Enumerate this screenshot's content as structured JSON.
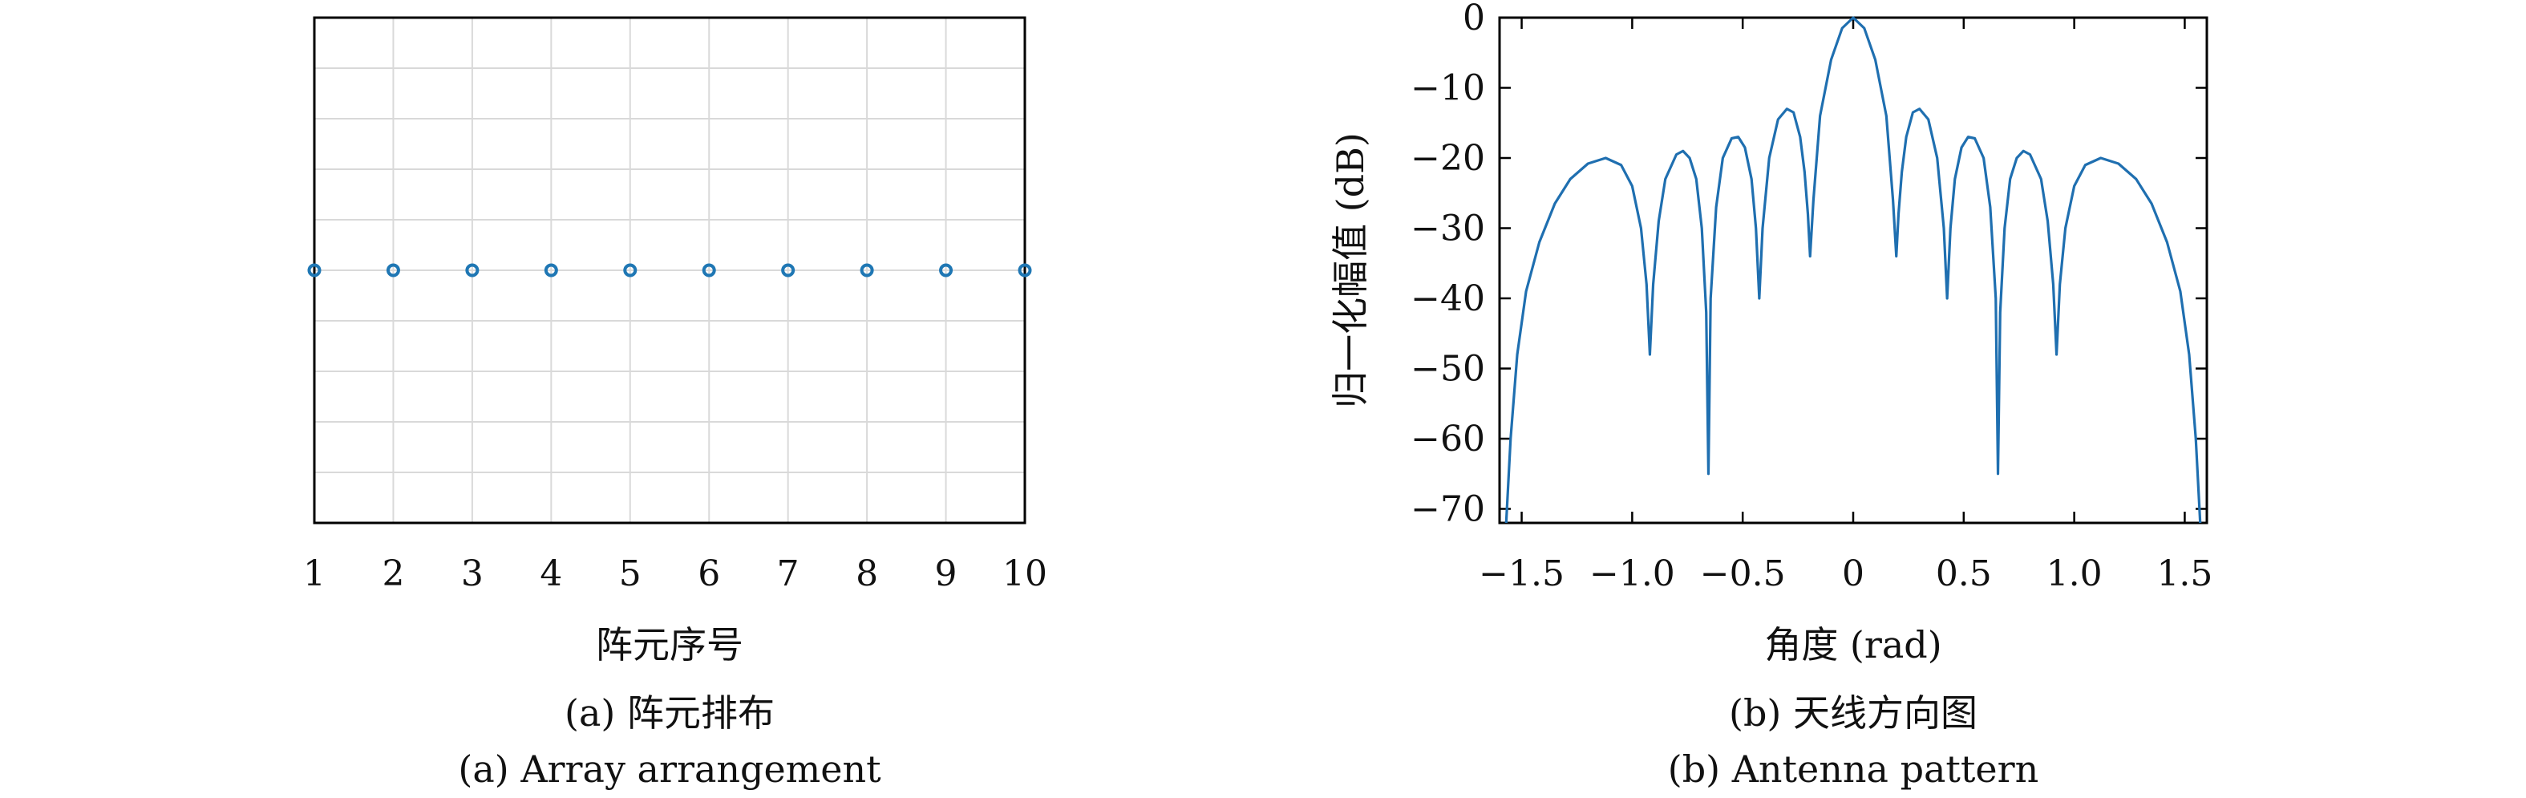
{
  "chart_data": [
    {
      "type": "scatter",
      "xlabel": "阵元序号",
      "ylabel": "",
      "caption_zh": "(a) 阵元排布",
      "caption_en": "(a) Array arrangement",
      "xlim": [
        1,
        10
      ],
      "ylim": [
        -1,
        1
      ],
      "grid": true,
      "x_ticks": [
        1,
        2,
        3,
        4,
        5,
        6,
        7,
        8,
        9,
        10
      ],
      "x_tick_labels": [
        "1",
        "2",
        "3",
        "4",
        "5",
        "6",
        "7",
        "8",
        "9",
        "10"
      ],
      "y_ticks": [
        -1,
        -0.8,
        -0.6,
        -0.4,
        -0.2,
        0,
        0.2,
        0.4,
        0.6,
        0.8,
        1
      ],
      "points": [
        {
          "x": 1,
          "y": 0
        },
        {
          "x": 2,
          "y": 0
        },
        {
          "x": 3,
          "y": 0
        },
        {
          "x": 4,
          "y": 0
        },
        {
          "x": 5,
          "y": 0
        },
        {
          "x": 6,
          "y": 0
        },
        {
          "x": 7,
          "y": 0
        },
        {
          "x": 8,
          "y": 0
        },
        {
          "x": 9,
          "y": 0
        },
        {
          "x": 10,
          "y": 0
        }
      ],
      "marker_color": "#1f77b4"
    },
    {
      "type": "line",
      "xlabel": "角度 (rad)",
      "ylabel": "归一化幅值 (dB)",
      "caption_zh": "(b) 天线方向图",
      "caption_en": "(b) Antenna pattern",
      "xlim": [
        -1.6,
        1.6
      ],
      "ylim": [
        -72,
        0
      ],
      "grid": false,
      "x_ticks": [
        -1.5,
        -1.0,
        -0.5,
        0,
        0.5,
        1.0,
        1.5
      ],
      "x_tick_labels": [
        "−1.5",
        "−1.0",
        "−0.5",
        "0",
        "0.5",
        "1.0",
        "1.5"
      ],
      "y_ticks": [
        0,
        -10,
        -20,
        -30,
        -40,
        -50,
        -60,
        -70
      ],
      "y_tick_labels": [
        "0",
        "−10",
        "−20",
        "−30",
        "−40",
        "−50",
        "−60",
        "−70"
      ],
      "series": [
        {
          "color": "#1f6fb0",
          "points": [
            [
              -1.57,
              -72
            ],
            [
              -1.55,
              -60
            ],
            [
              -1.52,
              -48
            ],
            [
              -1.48,
              -39
            ],
            [
              -1.42,
              -32
            ],
            [
              -1.35,
              -26.5
            ],
            [
              -1.28,
              -23
            ],
            [
              -1.2,
              -20.8
            ],
            [
              -1.12,
              -20
            ],
            [
              -1.05,
              -21
            ],
            [
              -1.0,
              -24
            ],
            [
              -0.96,
              -30
            ],
            [
              -0.935,
              -38
            ],
            [
              -0.92,
              -48
            ],
            [
              -0.905,
              -38
            ],
            [
              -0.88,
              -29
            ],
            [
              -0.85,
              -23
            ],
            [
              -0.8,
              -19.5
            ],
            [
              -0.77,
              -19
            ],
            [
              -0.74,
              -20
            ],
            [
              -0.71,
              -23
            ],
            [
              -0.685,
              -30
            ],
            [
              -0.665,
              -42
            ],
            [
              -0.655,
              -65
            ],
            [
              -0.645,
              -40
            ],
            [
              -0.62,
              -27
            ],
            [
              -0.59,
              -20
            ],
            [
              -0.55,
              -17.2
            ],
            [
              -0.52,
              -17
            ],
            [
              -0.49,
              -18.5
            ],
            [
              -0.46,
              -23
            ],
            [
              -0.44,
              -30
            ],
            [
              -0.425,
              -40
            ],
            [
              -0.41,
              -30
            ],
            [
              -0.38,
              -20
            ],
            [
              -0.34,
              -14.5
            ],
            [
              -0.3,
              -13
            ],
            [
              -0.27,
              -13.5
            ],
            [
              -0.24,
              -17
            ],
            [
              -0.22,
              -22
            ],
            [
              -0.205,
              -28
            ],
            [
              -0.195,
              -34
            ],
            [
              -0.18,
              -26
            ],
            [
              -0.15,
              -14
            ],
            [
              -0.1,
              -6
            ],
            [
              -0.05,
              -1.5
            ],
            [
              0,
              0
            ],
            [
              0.05,
              -1.5
            ],
            [
              0.1,
              -6
            ],
            [
              0.15,
              -14
            ],
            [
              0.18,
              -26
            ],
            [
              0.195,
              -34
            ],
            [
              0.205,
              -28
            ],
            [
              0.22,
              -22
            ],
            [
              0.24,
              -17
            ],
            [
              0.27,
              -13.5
            ],
            [
              0.3,
              -13
            ],
            [
              0.34,
              -14.5
            ],
            [
              0.38,
              -20
            ],
            [
              0.41,
              -30
            ],
            [
              0.425,
              -40
            ],
            [
              0.44,
              -30
            ],
            [
              0.46,
              -23
            ],
            [
              0.49,
              -18.5
            ],
            [
              0.52,
              -17
            ],
            [
              0.55,
              -17.2
            ],
            [
              0.59,
              -20
            ],
            [
              0.62,
              -27
            ],
            [
              0.645,
              -40
            ],
            [
              0.655,
              -65
            ],
            [
              0.665,
              -42
            ],
            [
              0.685,
              -30
            ],
            [
              0.71,
              -23
            ],
            [
              0.74,
              -20
            ],
            [
              0.77,
              -19
            ],
            [
              0.8,
              -19.5
            ],
            [
              0.85,
              -23
            ],
            [
              0.88,
              -29
            ],
            [
              0.905,
              -38
            ],
            [
              0.92,
              -48
            ],
            [
              0.935,
              -38
            ],
            [
              0.96,
              -30
            ],
            [
              1.0,
              -24
            ],
            [
              1.05,
              -21
            ],
            [
              1.12,
              -20
            ],
            [
              1.2,
              -20.8
            ],
            [
              1.28,
              -23
            ],
            [
              1.35,
              -26.5
            ],
            [
              1.42,
              -32
            ],
            [
              1.48,
              -39
            ],
            [
              1.52,
              -48
            ],
            [
              1.55,
              -60
            ],
            [
              1.57,
              -72
            ]
          ]
        }
      ]
    }
  ]
}
